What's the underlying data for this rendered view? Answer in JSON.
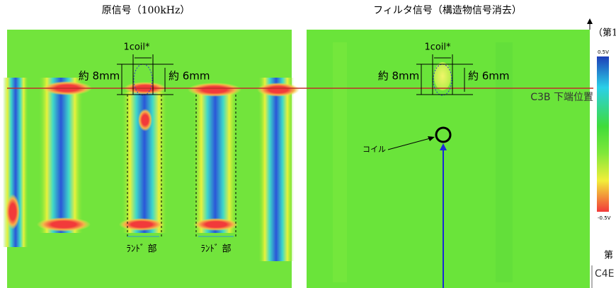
{
  "panels": [
    {
      "title": "原信号（100kHz）",
      "coil_width": "1coil*",
      "height_outer": "約 8mm",
      "height_inner": "約 6mm",
      "land_labels": [
        "ﾗﾝﾄﾞ 部",
        "ﾗﾝﾄﾞ 部"
      ]
    },
    {
      "title": "フィルタ信号（構造物信号消去）",
      "coil_width": "1coil*",
      "height_outer": "約 8mm",
      "height_inner": "約 6mm",
      "coil_label": "コイル"
    }
  ],
  "reference_line": "C3B 下端位置",
  "colorbar": {
    "max_label": "0.5V",
    "min_label": "-0.5V"
  },
  "edge_labels": [
    "（第1",
    "第",
    "C4E"
  ]
}
